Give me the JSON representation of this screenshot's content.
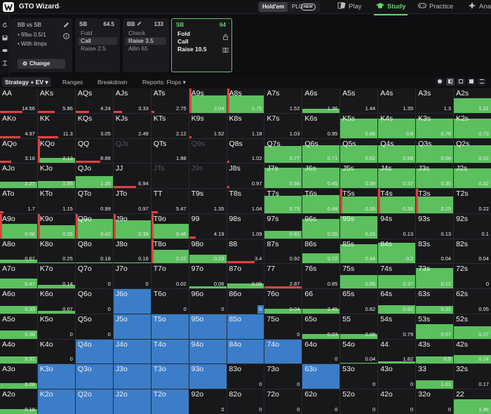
{
  "app": {
    "title": "GTO Wizard",
    "game_toggle": {
      "holdem": "Hold'em",
      "plo": "PLO",
      "plo_badge": "NEW"
    },
    "nav": [
      {
        "label": "Play",
        "icon": "cards-icon"
      },
      {
        "label": "Study",
        "icon": "graduation-cap-icon",
        "active": true
      },
      {
        "label": "Practice",
        "icon": "gamepad-icon"
      },
      {
        "label": "Ana",
        "icon": "analyze-icon"
      }
    ]
  },
  "spot": {
    "title": "BB vs SB",
    "stack_prefix": "99",
    "stack_unit": "bb",
    "blinds": "0.5/1",
    "variant": "With limps",
    "change_label": "Change"
  },
  "cards": [
    {
      "pos": "SB",
      "stack": "64.5",
      "actions": [
        "Fold",
        "Call",
        "Raise 2.5"
      ],
      "selected": 1
    },
    {
      "pos": "BB",
      "stack": "133",
      "actions": [
        "Check",
        "Raise 3.5",
        "Allin 65"
      ],
      "selected": 1
    },
    {
      "pos": "SB",
      "stack": "64",
      "actions": [
        "Fold",
        "Call",
        "Raise 10.5"
      ],
      "selected": -1,
      "active": true
    }
  ],
  "tabs": {
    "strategy": "Strategy + EV",
    "ranges": "Ranges",
    "breakdown": "Breakdown",
    "reports": "Reports: Flops"
  },
  "colors": {
    "fold": "#3b7dc8",
    "call": "#5cc05f",
    "raise": "#e0413f",
    "cell_bg": "#18181b",
    "accent": "#67d36b"
  },
  "grid": {
    "rows": [
      [
        [
          "AA",
          0,
          0,
          0.2,
          "14.56"
        ],
        [
          "AKs",
          0,
          0,
          0.15,
          "5.86"
        ],
        [
          "AQs",
          0,
          0,
          0.12,
          "4.24"
        ],
        [
          "AJs",
          0,
          0,
          0.08,
          "3.33"
        ],
        [
          "ATs",
          0,
          0,
          0.03,
          "2.75"
        ],
        [
          "A9s",
          0,
          0.7,
          0.02,
          "2.04"
        ],
        [
          "A8s",
          0,
          0.7,
          0.02,
          "1.75"
        ],
        [
          "A7s",
          0,
          0,
          0,
          "1.52"
        ],
        [
          "A6s",
          0,
          0.18,
          0,
          "1.36"
        ],
        [
          "A5s",
          0,
          0,
          0,
          "1.44"
        ],
        [
          "A4s",
          0,
          0,
          0,
          "1.35"
        ],
        [
          "A3s",
          0,
          0,
          0,
          "1.3"
        ],
        [
          "A2s",
          0,
          0.6,
          0,
          "1.21"
        ]
      ],
      [
        [
          "AKo",
          0,
          0,
          0.18,
          "4.97"
        ],
        [
          "KK",
          0,
          0,
          0.18,
          "11.3"
        ],
        [
          "KQs",
          0,
          0,
          0,
          "3.05"
        ],
        [
          "KJs",
          0,
          0,
          0,
          "2.49"
        ],
        [
          "KTs",
          0,
          0,
          0,
          "2.12"
        ],
        [
          "K9s",
          0,
          0,
          0.02,
          "1.52"
        ],
        [
          "K8s",
          0,
          0,
          0,
          "1.18"
        ],
        [
          "K7s",
          0,
          0,
          0,
          "1.03"
        ],
        [
          "K6s",
          0,
          0,
          0,
          "0.95"
        ],
        [
          "K5s",
          0,
          0.8,
          0,
          "0.86"
        ],
        [
          "K4s",
          0,
          0.8,
          0,
          "0.8"
        ],
        [
          "K3s",
          0,
          0.8,
          0,
          "0.76"
        ],
        [
          "K2s",
          0,
          0.8,
          0,
          "0.73"
        ]
      ],
      [
        [
          "AQo",
          0,
          0,
          0.1,
          "3.18"
        ],
        [
          "KQo",
          0,
          0.22,
          0.06,
          "2.13"
        ],
        [
          "QQ",
          0,
          0,
          0.22,
          "8.88"
        ],
        [
          "QJs",
          null,
          0,
          0,
          ""
        ],
        [
          "QTs",
          0,
          0,
          0,
          "1.88"
        ],
        [
          "Q9s",
          null,
          0,
          0,
          ""
        ],
        [
          "Q8s",
          0,
          0,
          0.02,
          "1.02"
        ],
        [
          "Q7s",
          0,
          0.7,
          0,
          "0.77"
        ],
        [
          "Q6s",
          0,
          0.72,
          0,
          "0.71"
        ],
        [
          "Q5s",
          0,
          0.72,
          0,
          "0.62"
        ],
        [
          "Q4s",
          0,
          0.72,
          0,
          "0.58"
        ],
        [
          "Q3s",
          0,
          0.72,
          0,
          "0.56"
        ],
        [
          "Q2s",
          0,
          0.72,
          0,
          "0.52"
        ]
      ],
      [
        [
          "AJo",
          0,
          0.25,
          0,
          "2.27"
        ],
        [
          "KJo",
          0,
          0.3,
          0,
          "1.55"
        ],
        [
          "QJo",
          0,
          0.5,
          0,
          "1.26"
        ],
        [
          "JJ",
          0,
          0,
          0.2,
          "6.94"
        ],
        [
          "JTs",
          null,
          0,
          0,
          ""
        ],
        [
          "J9s",
          null,
          0,
          0,
          ""
        ],
        [
          "J8s",
          0,
          0,
          0.02,
          "0.97"
        ],
        [
          "J7s",
          0,
          0.85,
          0,
          "0.66"
        ],
        [
          "J6s",
          0,
          0.85,
          0,
          "0.45"
        ],
        [
          "J5s",
          0,
          0.8,
          0,
          "0.39"
        ],
        [
          "J4s",
          0,
          0.8,
          0,
          "0.37"
        ],
        [
          "J3s",
          0,
          0.8,
          0,
          "0.35"
        ],
        [
          "J2s",
          0,
          0.8,
          0,
          "0.32"
        ]
      ],
      [
        [
          "ATo",
          0,
          0,
          0.03,
          "1.7"
        ],
        [
          "KTo",
          0,
          0,
          0,
          "1.15"
        ],
        [
          "QTo",
          0,
          0,
          0,
          "0.99"
        ],
        [
          "JTo",
          0,
          0,
          0,
          "0.97"
        ],
        [
          "TT",
          0,
          0,
          0.06,
          "5.47"
        ],
        [
          "T9s",
          0,
          0,
          0,
          "1.35"
        ],
        [
          "T8s",
          0,
          0,
          0,
          "1.04"
        ],
        [
          "T7s",
          0,
          0.72,
          0,
          "0.75"
        ],
        [
          "T6s",
          0,
          0.75,
          0,
          "0.48"
        ],
        [
          "T5s",
          0,
          0.7,
          0.05,
          "0.26"
        ],
        [
          "T4s",
          0,
          0.7,
          0.03,
          "0.26"
        ],
        [
          "T3s",
          0,
          0.7,
          0.03,
          "0.25"
        ],
        [
          "T2s",
          0,
          0,
          0,
          "0.22"
        ]
      ],
      [
        [
          "A9o",
          0,
          0.6,
          0.02,
          "0.96"
        ],
        [
          "K9o",
          0,
          0.55,
          0.02,
          "0.55"
        ],
        [
          "Q9o",
          0,
          0.8,
          0.02,
          "0.42"
        ],
        [
          "J9o",
          0,
          0.75,
          0.02,
          "0.39"
        ],
        [
          "T9o",
          0,
          0.6,
          0.02,
          "0.46"
        ],
        [
          "99",
          0,
          0,
          0.06,
          "4.19"
        ],
        [
          "98s",
          0,
          0,
          0,
          "1.09"
        ],
        [
          "97s",
          0,
          0.3,
          0,
          "0.81"
        ],
        [
          "96s",
          0,
          0.8,
          0,
          "0.55"
        ],
        [
          "95s",
          0,
          0.9,
          0,
          "0.26"
        ],
        [
          "94s",
          0,
          0,
          0,
          "0.13"
        ],
        [
          "93s",
          0,
          0,
          0,
          "0.13"
        ],
        [
          "92s",
          0,
          0,
          0,
          "0.1"
        ]
      ],
      [
        [
          "A8o",
          0,
          0.15,
          0,
          "0.67"
        ],
        [
          "K8o",
          0,
          0.05,
          0,
          "0.25"
        ],
        [
          "Q8o",
          0,
          0.05,
          0,
          "0.18"
        ],
        [
          "J8o",
          0,
          0.05,
          0,
          "0.16"
        ],
        [
          "T8o",
          0,
          0.55,
          0.02,
          "0.22"
        ],
        [
          "98o",
          0,
          0.35,
          0,
          "0.23"
        ],
        [
          "88",
          0,
          0,
          0.25,
          "3.4"
        ],
        [
          "87s",
          0,
          0,
          0,
          "0.92"
        ],
        [
          "86s",
          0,
          0.4,
          0,
          "0.72"
        ],
        [
          "85s",
          0,
          0.8,
          0,
          "0.44"
        ],
        [
          "84s",
          0,
          0.85,
          0,
          "0.2"
        ],
        [
          "83s",
          0,
          0,
          0,
          "0.04"
        ],
        [
          "82s",
          0,
          0,
          0,
          "0.04"
        ]
      ],
      [
        [
          "A7o",
          0,
          0.4,
          0,
          "0.47"
        ],
        [
          "K7o",
          0,
          0.15,
          0,
          "0.14"
        ],
        [
          "Q7o",
          0,
          0,
          0,
          "0"
        ],
        [
          "J7o",
          0,
          0,
          0,
          "0"
        ],
        [
          "T7o",
          0,
          0,
          0,
          "0.02"
        ],
        [
          "97o",
          0,
          0.08,
          0,
          "0.06"
        ],
        [
          "87o",
          0,
          0.2,
          0,
          "0.09"
        ],
        [
          "77",
          0,
          0,
          0.5,
          "2.87"
        ],
        [
          "76s",
          0,
          0,
          0,
          "0.85"
        ],
        [
          "75s",
          0,
          0.55,
          0,
          "0.65"
        ],
        [
          "74s",
          0,
          0.55,
          0,
          "0.37"
        ],
        [
          "73s",
          0,
          0.85,
          0,
          "0.12"
        ],
        [
          "72s",
          0,
          0,
          0,
          "0"
        ]
      ],
      [
        [
          "A6o",
          0,
          0.3,
          0,
          "0.33"
        ],
        [
          "K6o",
          0,
          0.1,
          0,
          "0.07"
        ],
        [
          "Q6o",
          0,
          0,
          0,
          "0"
        ],
        [
          "J6o",
          1,
          0,
          0,
          ""
        ],
        [
          "T6o",
          0,
          0,
          0,
          "0"
        ],
        [
          "96o",
          0,
          0,
          0,
          "0"
        ],
        [
          "86o",
          0.3,
          0,
          0,
          "0"
        ],
        [
          "76o",
          0,
          0.2,
          0,
          "0.04"
        ],
        [
          "66",
          0,
          0.2,
          0,
          "2.45"
        ],
        [
          "65s",
          0,
          0,
          0,
          "0.82"
        ],
        [
          "64s",
          0,
          0.35,
          0,
          "0.62"
        ],
        [
          "63s",
          0,
          0.3,
          0,
          "0.31"
        ],
        [
          "62s",
          0,
          0,
          0,
          "0.05"
        ]
      ],
      [
        [
          "A5o",
          0,
          0.35,
          0,
          "0.38"
        ],
        [
          "K5o",
          0,
          0,
          0,
          "0"
        ],
        [
          "Q5o",
          0,
          0,
          0,
          "0"
        ],
        [
          "J5o",
          1,
          0,
          0,
          ""
        ],
        [
          "T5o",
          1,
          0,
          0,
          ""
        ],
        [
          "95o",
          1,
          0,
          0,
          ""
        ],
        [
          "85o",
          1,
          0,
          0,
          ""
        ],
        [
          "75o",
          0,
          0,
          0,
          "0"
        ],
        [
          "65o",
          0,
          0.2,
          0,
          "0.03"
        ],
        [
          "55",
          0,
          0.2,
          0,
          "2.08"
        ],
        [
          "54s",
          0,
          0,
          0,
          "0.79"
        ],
        [
          "53s",
          0,
          0.6,
          0,
          "0.57"
        ],
        [
          "52s",
          0,
          0.5,
          0,
          "0.27"
        ]
      ],
      [
        [
          "A4o",
          0,
          0.3,
          0,
          "0.31"
        ],
        [
          "K4o",
          0,
          0,
          0,
          "0"
        ],
        [
          "Q4o",
          1,
          0,
          0,
          ""
        ],
        [
          "J4o",
          1,
          0,
          0,
          ""
        ],
        [
          "T4o",
          1,
          0,
          0,
          ""
        ],
        [
          "94o",
          1,
          0,
          0,
          ""
        ],
        [
          "84o",
          1,
          0,
          0,
          ""
        ],
        [
          "74o",
          1,
          0,
          0,
          ""
        ],
        [
          "64o",
          0,
          0,
          0,
          "0"
        ],
        [
          "54o",
          0,
          0.05,
          0,
          "0.04"
        ],
        [
          "44",
          0,
          0.1,
          0,
          "1.82"
        ],
        [
          "43s",
          0,
          0.3,
          0,
          "0.5"
        ],
        [
          "42s",
          0,
          0.35,
          0,
          "0.24"
        ]
      ],
      [
        [
          "A3o",
          0,
          0.25,
          0,
          "0.28"
        ],
        [
          "K3o",
          1,
          0,
          0,
          ""
        ],
        [
          "Q3o",
          1,
          0,
          0,
          ""
        ],
        [
          "J3o",
          1,
          0,
          0,
          ""
        ],
        [
          "T3o",
          1,
          0,
          0,
          ""
        ],
        [
          "93o",
          1,
          0,
          0,
          ""
        ],
        [
          "83o",
          0,
          0,
          0,
          "0"
        ],
        [
          "73o",
          0,
          0,
          0,
          "0"
        ],
        [
          "63o",
          1,
          0,
          0,
          ""
        ],
        [
          "53o",
          0,
          0,
          0,
          "0"
        ],
        [
          "43o",
          0,
          0,
          0,
          "0"
        ],
        [
          "33",
          0,
          0.35,
          0,
          "1.61"
        ],
        [
          "32s",
          0,
          0,
          0,
          "0.17"
        ]
      ],
      [
        [
          "A2o",
          0,
          0.2,
          0,
          "0.18"
        ],
        [
          "K2o",
          1,
          0,
          0,
          ""
        ],
        [
          "Q2o",
          1,
          0,
          0,
          ""
        ],
        [
          "J2o",
          1,
          0,
          0,
          ""
        ],
        [
          "T2o",
          1,
          0,
          0,
          ""
        ],
        [
          "92o",
          0,
          0,
          0,
          "0"
        ],
        [
          "82o",
          0,
          0,
          0,
          "0"
        ],
        [
          "72o",
          0,
          0,
          0,
          "0"
        ],
        [
          "62o",
          0,
          0,
          0,
          "0"
        ],
        [
          "52o",
          0,
          0,
          0,
          "0"
        ],
        [
          "42o",
          0,
          0,
          0,
          "0"
        ],
        [
          "32o",
          0,
          0,
          0,
          "0"
        ],
        [
          "22",
          0,
          0.6,
          0,
          "1.46"
        ]
      ]
    ]
  }
}
